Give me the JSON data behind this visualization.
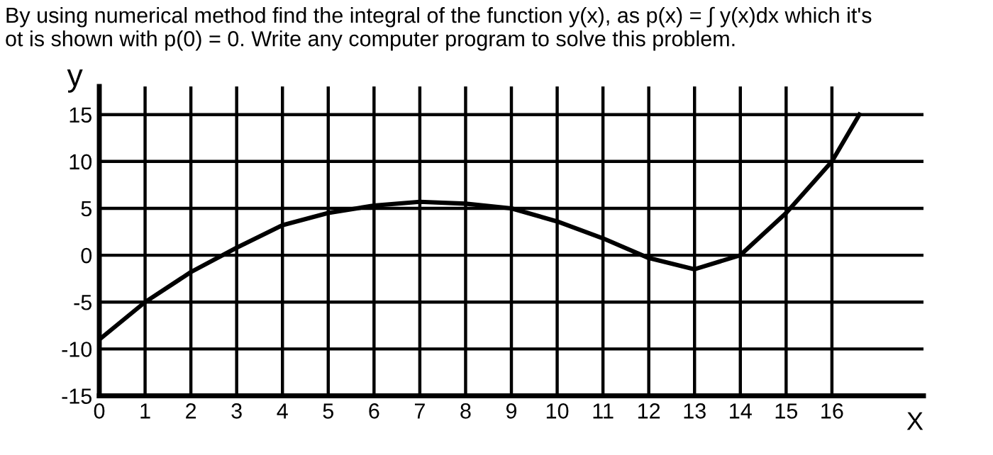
{
  "chart_data": {
    "type": "line",
    "title": "By using numerical method find the integral of the function y(x), as p(x) = ∫ y(x)dx which it's\not is shown with p(0) = 0. Write any computer program to solve this problem.",
    "xlabel": "X",
    "ylabel": "y",
    "x": [
      0,
      1,
      2,
      3,
      4,
      5,
      6,
      7,
      8,
      9,
      10,
      11,
      12,
      13,
      14,
      15,
      16,
      16.6
    ],
    "series": [
      {
        "color": "#000000",
        "values": [
          -9,
          -5,
          -1.8,
          0.8,
          3.2,
          4.5,
          5.3,
          5.7,
          5.5,
          5.0,
          3.6,
          1.8,
          -0.3,
          -1.5,
          0,
          4.5,
          10,
          15
        ]
      }
    ],
    "xlim": [
      0,
      18
    ],
    "ylim": [
      -15,
      18
    ],
    "xticks": [
      0,
      1,
      2,
      3,
      4,
      5,
      6,
      7,
      8,
      9,
      10,
      11,
      12,
      13,
      14,
      15,
      16
    ],
    "yticks": [
      -15,
      -10,
      -5,
      0,
      5,
      10,
      15
    ],
    "grid": true,
    "legend": false,
    "marker": "none",
    "line_style": "solid"
  }
}
